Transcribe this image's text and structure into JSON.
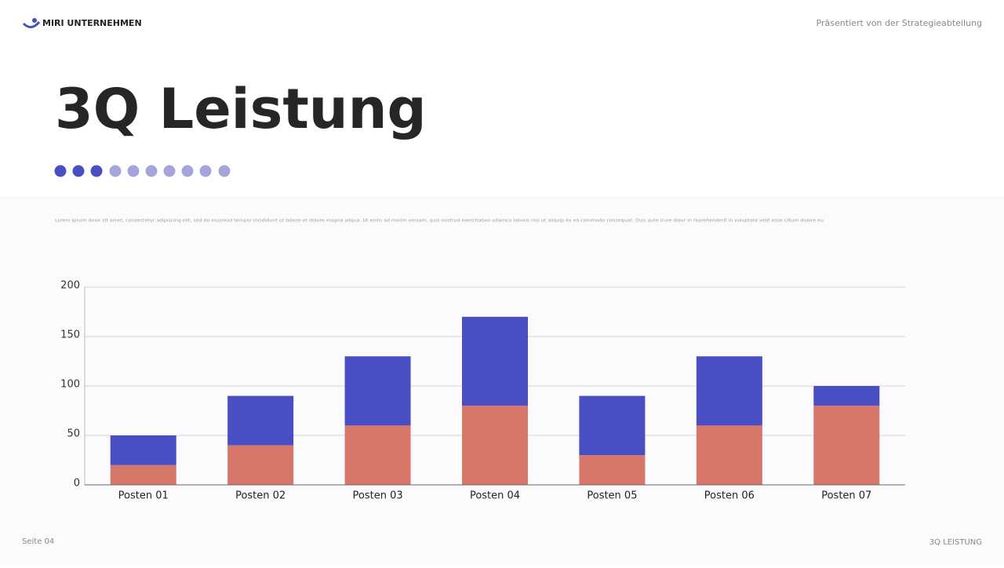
{
  "header": {
    "logo": "MIRI UNTERNEHMEN",
    "presenter": "Präsentiert von der Strategieabteilung"
  },
  "title": "3Q Leistung",
  "body": "Lorem ipsum dolor sit amet, consectetur adipiscing elit, sed do eiusmod tempor incididunt ut labore et dolore magna aliqua. Ut enim ad minim veniam, quis nostrud exercitation ullamco laboris nisi ut aliquip ex ea commodo consequat. Duis aute irure dolor in reprehenderit in voluptate velit esse cillum dolore eu",
  "chart_data": {
    "type": "bar",
    "stacked": true,
    "categories": [
      "Posten 01",
      "Posten 02",
      "Posten 03",
      "Posten 04",
      "Posten 05",
      "Posten 06",
      "Posten 07"
    ],
    "series": [
      {
        "color": "#d6776a",
        "values": [
          20,
          40,
          60,
          80,
          30,
          60,
          80
        ]
      },
      {
        "color": "#494fc2",
        "values": [
          30,
          50,
          70,
          90,
          60,
          70,
          20
        ]
      }
    ],
    "ylim": [
      0,
      200
    ],
    "yticks": [
      0,
      50,
      100,
      150,
      200
    ],
    "grid": true
  },
  "footer": {
    "page": "Seite 04",
    "section": "3Q LEISTUNG"
  }
}
